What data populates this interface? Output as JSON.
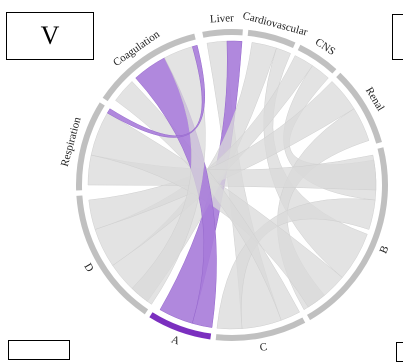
{
  "panel_label": "V",
  "segments": [
    {
      "name": "Liver",
      "color": "#c0c0c0"
    },
    {
      "name": "Cardiovascular",
      "color": "#c0c0c0"
    },
    {
      "name": "CNS",
      "color": "#c0c0c0"
    },
    {
      "name": "Renal",
      "color": "#c0c0c0"
    },
    {
      "name": "B",
      "color": "#c0c0c0"
    },
    {
      "name": "C",
      "color": "#c0c0c0"
    },
    {
      "name": "A",
      "color": "#7b2fbf"
    },
    {
      "name": "D",
      "color": "#c0c0c0"
    },
    {
      "name": "Respiration",
      "color": "#c0c0c0"
    },
    {
      "name": "Coagulation",
      "color": "#c0c0c0"
    }
  ],
  "colors": {
    "highlight_ribbon": "#a77bd9",
    "neutral_ribbon": "#d9d9d9",
    "highlight_arc": "#7b2fbf",
    "neutral_arc": "#bdbdbd"
  }
}
